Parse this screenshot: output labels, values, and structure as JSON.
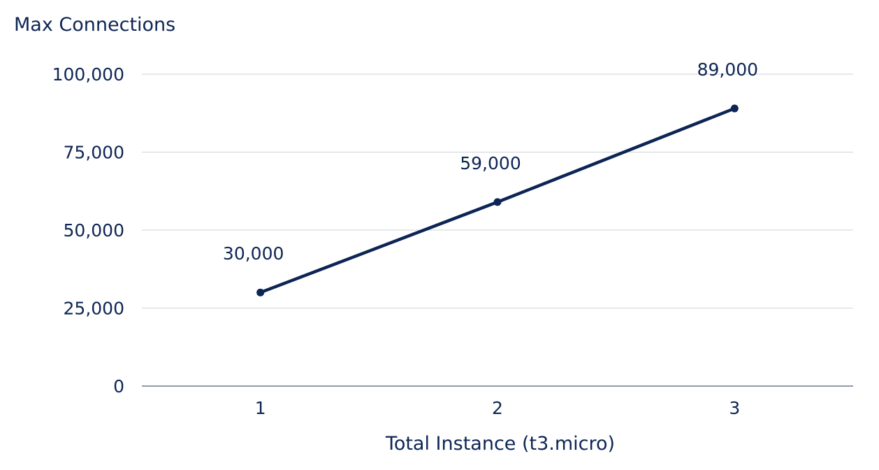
{
  "chart_data": {
    "type": "line",
    "ylabel": "Max Connections",
    "xlabel": "Total Instance (t3.micro)",
    "categories": [
      "1",
      "2",
      "3"
    ],
    "series": [
      {
        "values": [
          30000,
          59000,
          89000
        ],
        "data_labels": [
          "30,000",
          "59,000",
          "89,000"
        ]
      }
    ],
    "ylim": [
      0,
      100000
    ],
    "yticks": [
      0,
      25000,
      50000,
      75000,
      100000
    ],
    "ytick_labels": [
      "0",
      "25,000",
      "50,000",
      "75,000",
      "100,000"
    ],
    "grid": true,
    "legend": "none",
    "colors": {
      "line": "#0d2554",
      "text": "#0d2554",
      "grid": "#cfd3da",
      "axis": "#6e7a8e"
    }
  }
}
